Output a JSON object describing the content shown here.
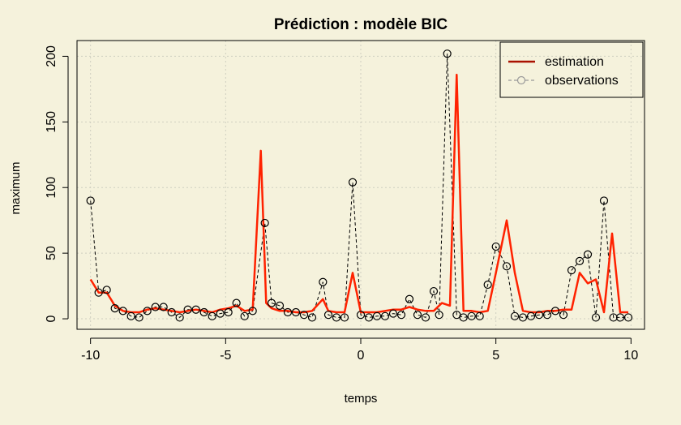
{
  "chart_data": {
    "type": "line",
    "title": "Prédiction : modèle BIC",
    "xlabel": "temps",
    "ylabel": "maximum",
    "xlim": [
      -10.5,
      10.5
    ],
    "ylim": [
      -8,
      212
    ],
    "x_ticks": [
      -10,
      -5,
      0,
      5,
      10
    ],
    "y_ticks": [
      0,
      50,
      100,
      150,
      200
    ],
    "grid": true,
    "legend_position": "top-right",
    "legend": [
      {
        "label": "estimation",
        "style": "solid-line",
        "color": "#aa1100"
      },
      {
        "label": "observations",
        "style": "dashed-line-circles",
        "color": "#999999"
      }
    ],
    "series": [
      {
        "name": "estimation",
        "color": "#ff2200",
        "x": [
          -10,
          -9.7,
          -9.4,
          -9.1,
          -8.8,
          -8.5,
          -8.2,
          -7.9,
          -7.6,
          -7.3,
          -7,
          -6.7,
          -6.4,
          -6.1,
          -5.8,
          -5.5,
          -5.2,
          -4.9,
          -4.6,
          -4.3,
          -4,
          -3.7,
          -3.5,
          -3.3,
          -3,
          -2.7,
          -2.4,
          -2.1,
          -1.8,
          -1.4,
          -1.2,
          -0.9,
          -0.6,
          -0.3,
          0,
          0.3,
          0.6,
          0.9,
          1.2,
          1.5,
          1.8,
          2.1,
          2.4,
          2.7,
          3,
          3.3,
          3.55,
          3.8,
          4.1,
          4.4,
          4.7,
          5,
          5.4,
          5.7,
          6,
          6.3,
          6.6,
          6.9,
          7.2,
          7.5,
          7.8,
          8.1,
          8.4,
          8.7,
          9,
          9.3,
          9.6,
          9.9
        ],
        "y": [
          30,
          20,
          20,
          10,
          6,
          5,
          5,
          7,
          8,
          7,
          6,
          5,
          6,
          7,
          6,
          5,
          7,
          8,
          10,
          6,
          7,
          128,
          12,
          8,
          6,
          6,
          5,
          5,
          6,
          15,
          6,
          5,
          5,
          35,
          5,
          5,
          5,
          6,
          7,
          7,
          9,
          7,
          6,
          6,
          12,
          10,
          186,
          6,
          6,
          5,
          6,
          35,
          75,
          35,
          6,
          5,
          5,
          6,
          6,
          7,
          7,
          35,
          27,
          30,
          5,
          65,
          5,
          5
        ]
      },
      {
        "name": "observations",
        "color": "#000000",
        "x": [
          -10,
          -9.7,
          -9.4,
          -9.1,
          -8.8,
          -8.5,
          -8.2,
          -7.9,
          -7.6,
          -7.3,
          -7,
          -6.7,
          -6.4,
          -6.1,
          -5.8,
          -5.5,
          -5.2,
          -4.9,
          -4.6,
          -4.3,
          -4,
          -3.55,
          -3.3,
          -3,
          -2.7,
          -2.4,
          -2.1,
          -1.8,
          -1.4,
          -1.2,
          -0.9,
          -0.6,
          -0.3,
          0,
          0.3,
          0.6,
          0.9,
          1.2,
          1.5,
          1.8,
          2.1,
          2.4,
          2.7,
          2.9,
          3.2,
          3.55,
          3.8,
          4.1,
          4.4,
          4.7,
          5,
          5.4,
          5.7,
          6,
          6.3,
          6.6,
          6.9,
          7.2,
          7.5,
          7.8,
          8.1,
          8.4,
          8.7,
          9,
          9.35,
          9.6,
          9.9
        ],
        "y": [
          90,
          20,
          22,
          8,
          6,
          2,
          1,
          6,
          9,
          9,
          5,
          1,
          7,
          7,
          5,
          2,
          4,
          5,
          12,
          2,
          6,
          73,
          12,
          10,
          5,
          5,
          3,
          1,
          28,
          3,
          1,
          1,
          104,
          3,
          1,
          2,
          2,
          4,
          3,
          15,
          3,
          1,
          21,
          3,
          202,
          3,
          1,
          2,
          2,
          26,
          55,
          40,
          2,
          1,
          2,
          3,
          3,
          6,
          3,
          37,
          44,
          49,
          1,
          90,
          1,
          1,
          1
        ]
      }
    ]
  }
}
